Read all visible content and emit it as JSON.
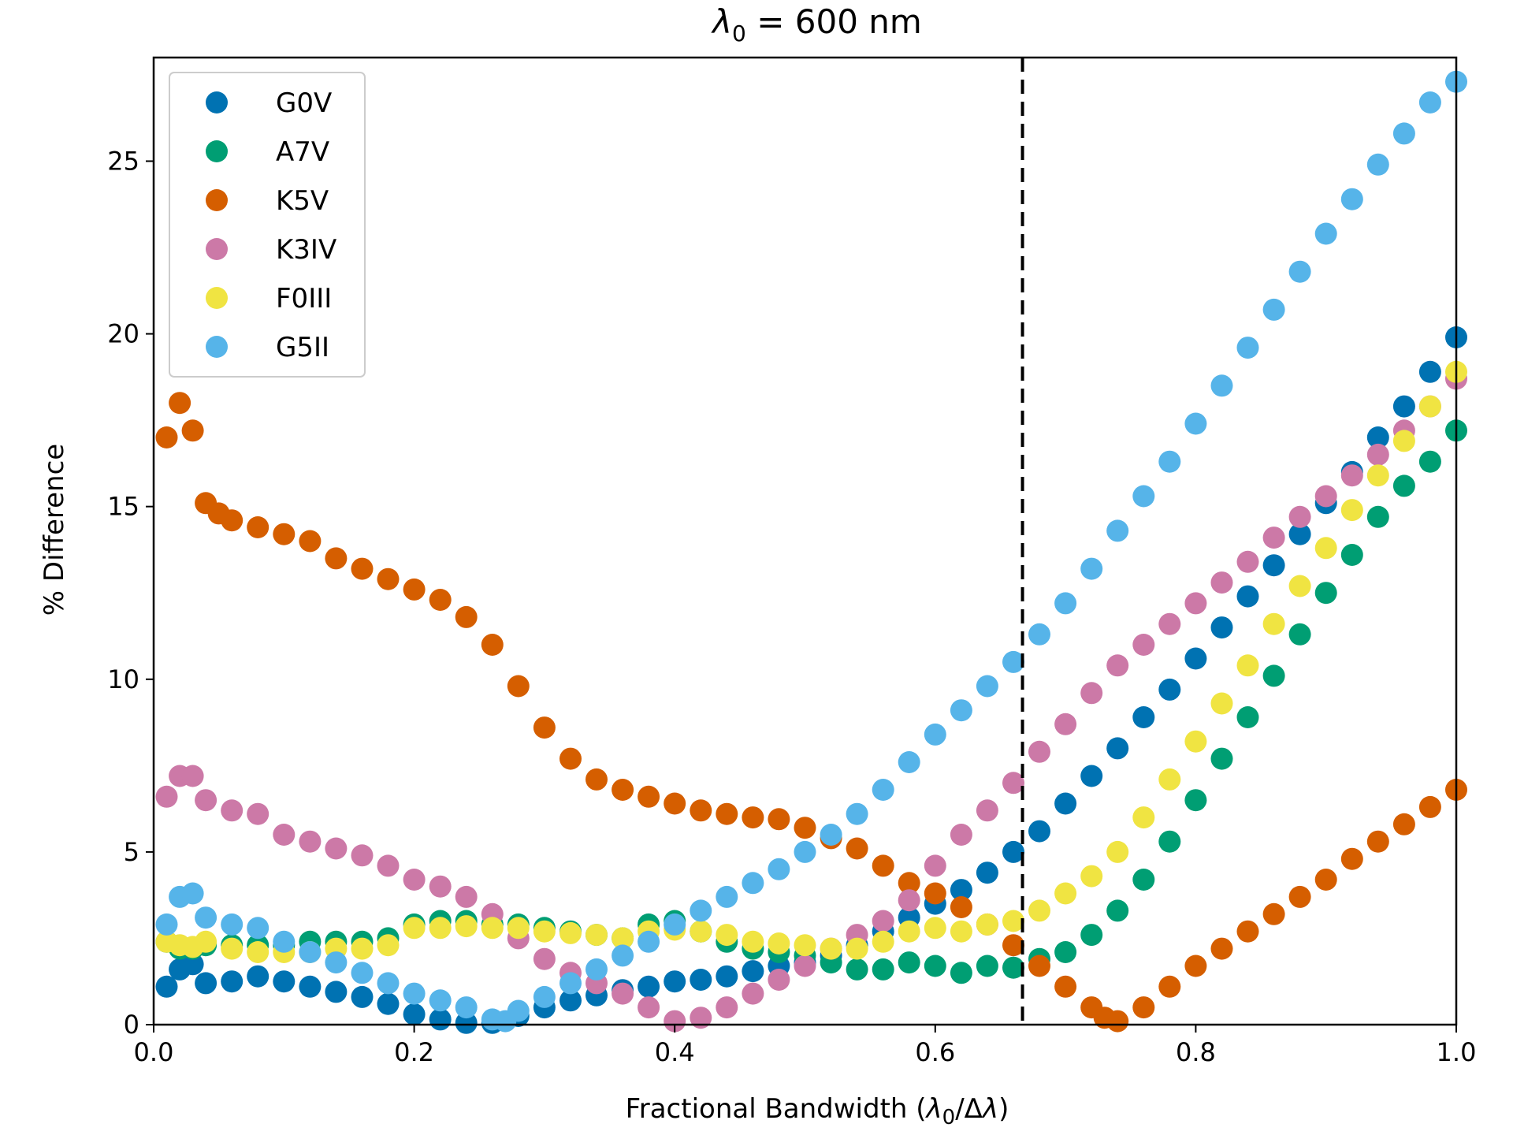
{
  "chart_data": {
    "type": "scatter",
    "title": "λ₀ = 600 nm",
    "xlabel": "Fractional Bandwidth (λ₀/Δλ)",
    "ylabel": "% Difference",
    "xlim": [
      0.0,
      1.0
    ],
    "ylim": [
      0,
      28
    ],
    "x_ticks": [
      0.0,
      0.2,
      0.4,
      0.6,
      0.8,
      1.0
    ],
    "x_tick_labels": [
      "0.0",
      "0.2",
      "0.4",
      "0.6",
      "0.8",
      "1.0"
    ],
    "y_ticks": [
      0,
      5,
      10,
      15,
      20,
      25
    ],
    "y_tick_labels": [
      "0",
      "5",
      "10",
      "15",
      "20",
      "25"
    ],
    "grid": false,
    "legend_position": "upper-left",
    "reference_line": {
      "x": 0.667,
      "style": "dashed",
      "color": "#000000"
    },
    "series": [
      {
        "name": "G0V",
        "color": "#0072b2",
        "points": [
          [
            0.01,
            1.1
          ],
          [
            0.02,
            1.6
          ],
          [
            0.03,
            1.75
          ],
          [
            0.04,
            1.2
          ],
          [
            0.06,
            1.25
          ],
          [
            0.08,
            1.4
          ],
          [
            0.1,
            1.25
          ],
          [
            0.12,
            1.1
          ],
          [
            0.14,
            0.95
          ],
          [
            0.16,
            0.8
          ],
          [
            0.18,
            0.6
          ],
          [
            0.2,
            0.3
          ],
          [
            0.22,
            0.15
          ],
          [
            0.24,
            0.05
          ],
          [
            0.26,
            0.05
          ],
          [
            0.28,
            0.25
          ],
          [
            0.3,
            0.5
          ],
          [
            0.32,
            0.7
          ],
          [
            0.34,
            0.85
          ],
          [
            0.36,
            1.0
          ],
          [
            0.38,
            1.1
          ],
          [
            0.4,
            1.25
          ],
          [
            0.42,
            1.3
          ],
          [
            0.44,
            1.4
          ],
          [
            0.46,
            1.55
          ],
          [
            0.48,
            1.7
          ],
          [
            0.5,
            1.8
          ],
          [
            0.52,
            2.0
          ],
          [
            0.54,
            2.3
          ],
          [
            0.56,
            2.7
          ],
          [
            0.58,
            3.1
          ],
          [
            0.6,
            3.5
          ],
          [
            0.62,
            3.9
          ],
          [
            0.64,
            4.4
          ],
          [
            0.66,
            5.0
          ],
          [
            0.68,
            5.6
          ],
          [
            0.7,
            6.4
          ],
          [
            0.72,
            7.2
          ],
          [
            0.74,
            8.0
          ],
          [
            0.76,
            8.9
          ],
          [
            0.78,
            9.7
          ],
          [
            0.8,
            10.6
          ],
          [
            0.82,
            11.5
          ],
          [
            0.84,
            12.4
          ],
          [
            0.86,
            13.3
          ],
          [
            0.88,
            14.2
          ],
          [
            0.9,
            15.1
          ],
          [
            0.92,
            16.0
          ],
          [
            0.94,
            17.0
          ],
          [
            0.96,
            17.9
          ],
          [
            0.98,
            18.9
          ],
          [
            1.0,
            19.9
          ]
        ]
      },
      {
        "name": "A7V",
        "color": "#009e73",
        "points": [
          [
            0.01,
            2.4
          ],
          [
            0.02,
            2.2
          ],
          [
            0.03,
            2.2
          ],
          [
            0.04,
            2.3
          ],
          [
            0.06,
            2.3
          ],
          [
            0.08,
            2.3
          ],
          [
            0.1,
            2.3
          ],
          [
            0.12,
            2.4
          ],
          [
            0.14,
            2.4
          ],
          [
            0.16,
            2.4
          ],
          [
            0.18,
            2.5
          ],
          [
            0.2,
            2.9
          ],
          [
            0.22,
            3.0
          ],
          [
            0.24,
            3.0
          ],
          [
            0.26,
            2.9
          ],
          [
            0.28,
            2.9
          ],
          [
            0.3,
            2.8
          ],
          [
            0.32,
            2.7
          ],
          [
            0.34,
            2.6
          ],
          [
            0.36,
            2.5
          ],
          [
            0.38,
            2.9
          ],
          [
            0.4,
            3.0
          ],
          [
            0.42,
            2.7
          ],
          [
            0.44,
            2.4
          ],
          [
            0.46,
            2.2
          ],
          [
            0.48,
            2.1
          ],
          [
            0.5,
            2.0
          ],
          [
            0.52,
            1.8
          ],
          [
            0.54,
            1.6
          ],
          [
            0.56,
            1.6
          ],
          [
            0.58,
            1.8
          ],
          [
            0.6,
            1.7
          ],
          [
            0.62,
            1.5
          ],
          [
            0.64,
            1.7
          ],
          [
            0.66,
            1.65
          ],
          [
            0.68,
            1.9
          ],
          [
            0.7,
            2.1
          ],
          [
            0.72,
            2.6
          ],
          [
            0.74,
            3.3
          ],
          [
            0.76,
            4.2
          ],
          [
            0.78,
            5.3
          ],
          [
            0.8,
            6.5
          ],
          [
            0.82,
            7.7
          ],
          [
            0.84,
            8.9
          ],
          [
            0.86,
            10.1
          ],
          [
            0.88,
            11.3
          ],
          [
            0.9,
            12.5
          ],
          [
            0.92,
            13.6
          ],
          [
            0.94,
            14.7
          ],
          [
            0.96,
            15.6
          ],
          [
            0.98,
            16.3
          ],
          [
            1.0,
            17.2
          ]
        ]
      },
      {
        "name": "K5V",
        "color": "#d55e00",
        "points": [
          [
            0.01,
            17.0
          ],
          [
            0.02,
            18.0
          ],
          [
            0.03,
            17.2
          ],
          [
            0.04,
            15.1
          ],
          [
            0.05,
            14.8
          ],
          [
            0.06,
            14.6
          ],
          [
            0.08,
            14.4
          ],
          [
            0.1,
            14.2
          ],
          [
            0.12,
            14.0
          ],
          [
            0.14,
            13.5
          ],
          [
            0.16,
            13.2
          ],
          [
            0.18,
            12.9
          ],
          [
            0.2,
            12.6
          ],
          [
            0.22,
            12.3
          ],
          [
            0.24,
            11.8
          ],
          [
            0.26,
            11.0
          ],
          [
            0.28,
            9.8
          ],
          [
            0.3,
            8.6
          ],
          [
            0.32,
            7.7
          ],
          [
            0.34,
            7.1
          ],
          [
            0.36,
            6.8
          ],
          [
            0.38,
            6.6
          ],
          [
            0.4,
            6.4
          ],
          [
            0.42,
            6.2
          ],
          [
            0.44,
            6.1
          ],
          [
            0.46,
            6.0
          ],
          [
            0.48,
            5.95
          ],
          [
            0.5,
            5.7
          ],
          [
            0.52,
            5.4
          ],
          [
            0.54,
            5.1
          ],
          [
            0.56,
            4.6
          ],
          [
            0.58,
            4.1
          ],
          [
            0.6,
            3.8
          ],
          [
            0.62,
            3.4
          ],
          [
            0.64,
            2.9
          ],
          [
            0.66,
            2.3
          ],
          [
            0.68,
            1.7
          ],
          [
            0.7,
            1.1
          ],
          [
            0.72,
            0.5
          ],
          [
            0.73,
            0.2
          ],
          [
            0.74,
            0.1
          ],
          [
            0.76,
            0.5
          ],
          [
            0.78,
            1.1
          ],
          [
            0.8,
            1.7
          ],
          [
            0.82,
            2.2
          ],
          [
            0.84,
            2.7
          ],
          [
            0.86,
            3.2
          ],
          [
            0.88,
            3.7
          ],
          [
            0.9,
            4.2
          ],
          [
            0.92,
            4.8
          ],
          [
            0.94,
            5.3
          ],
          [
            0.96,
            5.8
          ],
          [
            0.98,
            6.3
          ],
          [
            1.0,
            6.8
          ]
        ]
      },
      {
        "name": "K3IV",
        "color": "#cc79a7",
        "points": [
          [
            0.01,
            6.6
          ],
          [
            0.02,
            7.2
          ],
          [
            0.03,
            7.2
          ],
          [
            0.04,
            6.5
          ],
          [
            0.06,
            6.2
          ],
          [
            0.08,
            6.1
          ],
          [
            0.1,
            5.5
          ],
          [
            0.12,
            5.3
          ],
          [
            0.14,
            5.1
          ],
          [
            0.16,
            4.9
          ],
          [
            0.18,
            4.6
          ],
          [
            0.2,
            4.2
          ],
          [
            0.22,
            4.0
          ],
          [
            0.24,
            3.7
          ],
          [
            0.26,
            3.2
          ],
          [
            0.28,
            2.5
          ],
          [
            0.3,
            1.9
          ],
          [
            0.32,
            1.5
          ],
          [
            0.34,
            1.2
          ],
          [
            0.36,
            0.9
          ],
          [
            0.38,
            0.5
          ],
          [
            0.4,
            0.1
          ],
          [
            0.42,
            0.2
          ],
          [
            0.44,
            0.5
          ],
          [
            0.46,
            0.9
          ],
          [
            0.48,
            1.3
          ],
          [
            0.5,
            1.7
          ],
          [
            0.52,
            2.2
          ],
          [
            0.54,
            2.6
          ],
          [
            0.56,
            3.0
          ],
          [
            0.58,
            3.6
          ],
          [
            0.6,
            4.6
          ],
          [
            0.62,
            5.5
          ],
          [
            0.64,
            6.2
          ],
          [
            0.66,
            7.0
          ],
          [
            0.68,
            7.9
          ],
          [
            0.7,
            8.7
          ],
          [
            0.72,
            9.6
          ],
          [
            0.74,
            10.4
          ],
          [
            0.76,
            11.0
          ],
          [
            0.78,
            11.6
          ],
          [
            0.8,
            12.2
          ],
          [
            0.82,
            12.8
          ],
          [
            0.84,
            13.4
          ],
          [
            0.86,
            14.1
          ],
          [
            0.88,
            14.7
          ],
          [
            0.9,
            15.3
          ],
          [
            0.92,
            15.9
          ],
          [
            0.94,
            16.5
          ],
          [
            0.96,
            17.2
          ],
          [
            0.98,
            17.9
          ],
          [
            1.0,
            18.7
          ]
        ]
      },
      {
        "name": "F0III",
        "color": "#f0e442",
        "points": [
          [
            0.01,
            2.4
          ],
          [
            0.02,
            2.3
          ],
          [
            0.03,
            2.25
          ],
          [
            0.04,
            2.4
          ],
          [
            0.06,
            2.2
          ],
          [
            0.08,
            2.1
          ],
          [
            0.1,
            2.1
          ],
          [
            0.12,
            2.1
          ],
          [
            0.14,
            2.2
          ],
          [
            0.16,
            2.2
          ],
          [
            0.18,
            2.3
          ],
          [
            0.2,
            2.8
          ],
          [
            0.22,
            2.8
          ],
          [
            0.24,
            2.85
          ],
          [
            0.26,
            2.8
          ],
          [
            0.28,
            2.8
          ],
          [
            0.3,
            2.7
          ],
          [
            0.32,
            2.65
          ],
          [
            0.34,
            2.6
          ],
          [
            0.36,
            2.5
          ],
          [
            0.38,
            2.7
          ],
          [
            0.4,
            2.75
          ],
          [
            0.42,
            2.7
          ],
          [
            0.44,
            2.6
          ],
          [
            0.46,
            2.4
          ],
          [
            0.48,
            2.35
          ],
          [
            0.5,
            2.3
          ],
          [
            0.52,
            2.2
          ],
          [
            0.54,
            2.2
          ],
          [
            0.56,
            2.4
          ],
          [
            0.58,
            2.7
          ],
          [
            0.6,
            2.8
          ],
          [
            0.62,
            2.7
          ],
          [
            0.64,
            2.9
          ],
          [
            0.66,
            3.0
          ],
          [
            0.68,
            3.3
          ],
          [
            0.7,
            3.8
          ],
          [
            0.72,
            4.3
          ],
          [
            0.74,
            5.0
          ],
          [
            0.76,
            6.0
          ],
          [
            0.78,
            7.1
          ],
          [
            0.8,
            8.2
          ],
          [
            0.82,
            9.3
          ],
          [
            0.84,
            10.4
          ],
          [
            0.86,
            11.6
          ],
          [
            0.88,
            12.7
          ],
          [
            0.9,
            13.8
          ],
          [
            0.92,
            14.9
          ],
          [
            0.94,
            15.9
          ],
          [
            0.96,
            16.9
          ],
          [
            0.98,
            17.9
          ],
          [
            1.0,
            18.9
          ]
        ]
      },
      {
        "name": "G5II",
        "color": "#56b4e9",
        "points": [
          [
            0.01,
            2.9
          ],
          [
            0.02,
            3.7
          ],
          [
            0.03,
            3.8
          ],
          [
            0.04,
            3.1
          ],
          [
            0.06,
            2.9
          ],
          [
            0.08,
            2.8
          ],
          [
            0.1,
            2.4
          ],
          [
            0.12,
            2.1
          ],
          [
            0.14,
            1.8
          ],
          [
            0.16,
            1.5
          ],
          [
            0.18,
            1.2
          ],
          [
            0.2,
            0.9
          ],
          [
            0.22,
            0.7
          ],
          [
            0.24,
            0.5
          ],
          [
            0.26,
            0.15
          ],
          [
            0.27,
            0.1
          ],
          [
            0.28,
            0.4
          ],
          [
            0.3,
            0.8
          ],
          [
            0.32,
            1.2
          ],
          [
            0.34,
            1.6
          ],
          [
            0.36,
            2.0
          ],
          [
            0.38,
            2.4
          ],
          [
            0.4,
            2.9
          ],
          [
            0.42,
            3.3
          ],
          [
            0.44,
            3.7
          ],
          [
            0.46,
            4.1
          ],
          [
            0.48,
            4.5
          ],
          [
            0.5,
            5.0
          ],
          [
            0.52,
            5.5
          ],
          [
            0.54,
            6.1
          ],
          [
            0.56,
            6.8
          ],
          [
            0.58,
            7.6
          ],
          [
            0.6,
            8.4
          ],
          [
            0.62,
            9.1
          ],
          [
            0.64,
            9.8
          ],
          [
            0.66,
            10.5
          ],
          [
            0.68,
            11.3
          ],
          [
            0.7,
            12.2
          ],
          [
            0.72,
            13.2
          ],
          [
            0.74,
            14.3
          ],
          [
            0.76,
            15.3
          ],
          [
            0.78,
            16.3
          ],
          [
            0.8,
            17.4
          ],
          [
            0.82,
            18.5
          ],
          [
            0.84,
            19.6
          ],
          [
            0.86,
            20.7
          ],
          [
            0.88,
            21.8
          ],
          [
            0.9,
            22.9
          ],
          [
            0.92,
            23.9
          ],
          [
            0.94,
            24.9
          ],
          [
            0.96,
            25.8
          ],
          [
            0.98,
            26.7
          ],
          [
            1.0,
            27.3
          ]
        ]
      }
    ]
  }
}
